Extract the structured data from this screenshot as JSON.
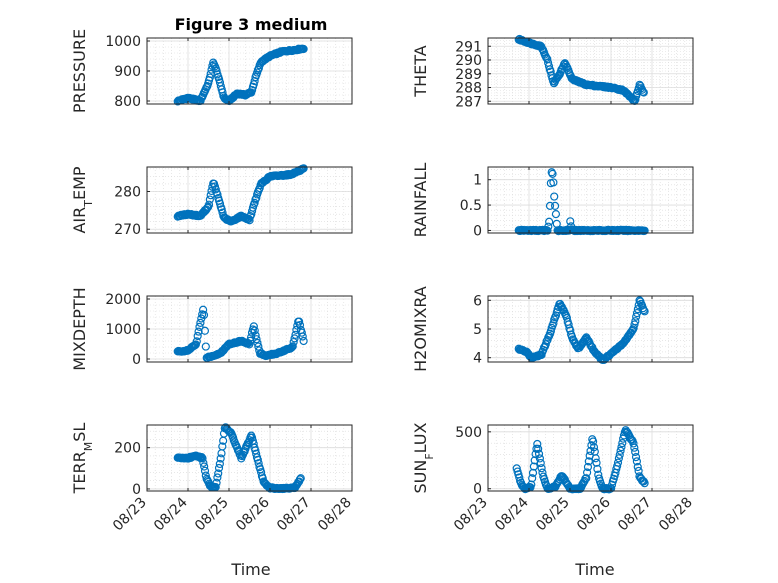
{
  "chart_data": {
    "type": "scatter",
    "title": "Figure 3 medium",
    "color": "#0072BD",
    "x_ticks": [
      "08/23",
      "08/24",
      "08/25",
      "08/26",
      "08/27",
      "08/28"
    ],
    "x_range": [
      "08/23",
      "08/28"
    ],
    "x_label": "Time",
    "grid": "on",
    "panels": [
      {
        "id": "pressure",
        "ylabel_text": "PRESSURE",
        "ylim": [
          790,
          1010
        ],
        "yticks": [
          {
            "value": 800,
            "label": "800"
          },
          {
            "value": 900,
            "label": "900"
          },
          {
            "value": 1000,
            "label": "1000"
          }
        ],
        "keys": [
          [
            0.75,
            800
          ],
          [
            1.0,
            810
          ],
          [
            1.3,
            800
          ],
          [
            1.5,
            860
          ],
          [
            1.62,
            930
          ],
          [
            1.72,
            890
          ],
          [
            1.88,
            810
          ],
          [
            2.0,
            800
          ],
          [
            2.2,
            825
          ],
          [
            2.4,
            820
          ],
          [
            2.55,
            830
          ],
          [
            2.65,
            880
          ],
          [
            2.78,
            930
          ],
          [
            3.0,
            950
          ],
          [
            3.3,
            965
          ],
          [
            3.6,
            970
          ],
          [
            3.82,
            975
          ]
        ],
        "n": 150
      },
      {
        "id": "theta",
        "ylabel_text": "THETA",
        "ylim": [
          286.8,
          291.6
        ],
        "yticks": [
          {
            "value": 287,
            "label": "287"
          },
          {
            "value": 288,
            "label": "288"
          },
          {
            "value": 289,
            "label": "289"
          },
          {
            "value": 290,
            "label": "290"
          },
          {
            "value": 291,
            "label": "291"
          }
        ],
        "keys": [
          [
            0.75,
            291.5
          ],
          [
            1.05,
            291.2
          ],
          [
            1.3,
            291.0
          ],
          [
            1.45,
            290.0
          ],
          [
            1.6,
            288.3
          ],
          [
            1.75,
            289.0
          ],
          [
            1.88,
            289.8
          ],
          [
            2.05,
            288.6
          ],
          [
            2.4,
            288.2
          ],
          [
            2.7,
            288.1
          ],
          [
            3.0,
            288.0
          ],
          [
            3.3,
            287.8
          ],
          [
            3.58,
            287.0
          ],
          [
            3.7,
            288.2
          ],
          [
            3.8,
            287.6
          ]
        ],
        "n": 150
      },
      {
        "id": "air-temp",
        "ylabel_text": "AIR",
        "ylabel_sub": "T",
        "ylabel_rest": "EMP",
        "ylim": [
          269,
          286.5
        ],
        "yticks": [
          {
            "value": 270,
            "label": "270"
          },
          {
            "value": 280,
            "label": "280"
          }
        ],
        "keys": [
          [
            0.75,
            273.5
          ],
          [
            1.0,
            274.0
          ],
          [
            1.3,
            273.5
          ],
          [
            1.5,
            276.0
          ],
          [
            1.62,
            282.5
          ],
          [
            1.72,
            279.0
          ],
          [
            1.88,
            273.0
          ],
          [
            2.05,
            272.0
          ],
          [
            2.3,
            273.5
          ],
          [
            2.5,
            272.5
          ],
          [
            2.62,
            277.0
          ],
          [
            2.78,
            282.0
          ],
          [
            3.0,
            284.0
          ],
          [
            3.5,
            284.5
          ],
          [
            3.82,
            286.0
          ]
        ],
        "n": 150
      },
      {
        "id": "rainfall",
        "ylabel_text": "RAINFALL",
        "ylim": [
          -0.05,
          1.25
        ],
        "yticks": [
          {
            "value": 0,
            "label": "0"
          },
          {
            "value": 0.5,
            "label": "0.5"
          },
          {
            "value": 1,
            "label": "1"
          }
        ],
        "keys": [
          [
            0.75,
            0
          ],
          [
            1.45,
            0
          ],
          [
            1.5,
            0.2
          ],
          [
            1.53,
            0.9
          ],
          [
            1.56,
            1.2
          ],
          [
            1.59,
            1.0
          ],
          [
            1.62,
            0.6
          ],
          [
            1.65,
            0.4
          ],
          [
            1.69,
            0
          ],
          [
            2.0,
            0
          ],
          [
            2.0,
            0.2
          ],
          [
            2.05,
            0
          ],
          [
            3.82,
            0
          ]
        ],
        "n": 150
      },
      {
        "id": "mixdepth",
        "ylabel_text": "MIXDEPTH",
        "ylim": [
          -100,
          2100
        ],
        "yticks": [
          {
            "value": 0,
            "label": "0"
          },
          {
            "value": 1000,
            "label": "1000"
          },
          {
            "value": 2000,
            "label": "2000"
          }
        ],
        "keys": [
          [
            0.75,
            250
          ],
          [
            1.0,
            280
          ],
          [
            1.2,
            500
          ],
          [
            1.3,
            1200
          ],
          [
            1.38,
            1700
          ],
          [
            1.45,
            50
          ],
          [
            1.6,
            100
          ],
          [
            1.8,
            200
          ],
          [
            2.0,
            500
          ],
          [
            2.3,
            600
          ],
          [
            2.5,
            500
          ],
          [
            2.6,
            1100
          ],
          [
            2.75,
            200
          ],
          [
            2.9,
            100
          ],
          [
            3.2,
            200
          ],
          [
            3.55,
            400
          ],
          [
            3.7,
            1300
          ],
          [
            3.82,
            600
          ]
        ],
        "n": 140
      },
      {
        "id": "h2omixra",
        "ylabel_text": "H2OMIXRA",
        "ylim": [
          3.85,
          6.15
        ],
        "yticks": [
          {
            "value": 4,
            "label": "4"
          },
          {
            "value": 5,
            "label": "5"
          },
          {
            "value": 6,
            "label": "6"
          }
        ],
        "keys": [
          [
            0.75,
            4.3
          ],
          [
            0.95,
            4.2
          ],
          [
            1.05,
            4.0
          ],
          [
            1.3,
            4.1
          ],
          [
            1.5,
            4.8
          ],
          [
            1.75,
            5.9
          ],
          [
            1.9,
            5.5
          ],
          [
            2.05,
            4.7
          ],
          [
            2.2,
            4.3
          ],
          [
            2.4,
            4.7
          ],
          [
            2.6,
            4.2
          ],
          [
            2.8,
            3.9
          ],
          [
            3.05,
            4.2
          ],
          [
            3.3,
            4.5
          ],
          [
            3.55,
            5.0
          ],
          [
            3.7,
            6.0
          ],
          [
            3.82,
            5.6
          ]
        ],
        "n": 150
      },
      {
        "id": "terr-msl",
        "ylabel_text": "TERR",
        "ylabel_sub": "M",
        "ylabel_rest": "SL",
        "ylim": [
          -10,
          310
        ],
        "yticks": [
          {
            "value": 0,
            "label": "0"
          },
          {
            "value": 200,
            "label": "200"
          }
        ],
        "keys": [
          [
            0.75,
            150
          ],
          [
            1.0,
            150
          ],
          [
            1.2,
            160
          ],
          [
            1.35,
            150
          ],
          [
            1.45,
            50
          ],
          [
            1.55,
            10
          ],
          [
            1.68,
            10
          ],
          [
            1.8,
            150
          ],
          [
            1.9,
            300
          ],
          [
            2.05,
            270
          ],
          [
            2.3,
            150
          ],
          [
            2.55,
            260
          ],
          [
            2.7,
            140
          ],
          [
            2.85,
            30
          ],
          [
            3.0,
            5
          ],
          [
            3.2,
            2
          ],
          [
            3.6,
            5
          ],
          [
            3.75,
            50
          ]
        ],
        "n": 150
      },
      {
        "id": "sun-flux",
        "ylabel_text": "SUN",
        "ylabel_sub": "F",
        "ylabel_rest": "LUX",
        "ylim": [
          -20,
          560
        ],
        "yticks": [
          {
            "value": 0,
            "label": "0"
          },
          {
            "value": 500,
            "label": "500"
          }
        ],
        "keys": [
          [
            0.7,
            180
          ],
          [
            0.8,
            50
          ],
          [
            0.9,
            0
          ],
          [
            1.05,
            20
          ],
          [
            1.2,
            400
          ],
          [
            1.35,
            100
          ],
          [
            1.45,
            0
          ],
          [
            1.65,
            20
          ],
          [
            1.8,
            120
          ],
          [
            2.0,
            0
          ],
          [
            2.25,
            0
          ],
          [
            2.4,
            100
          ],
          [
            2.55,
            450
          ],
          [
            2.7,
            100
          ],
          [
            2.8,
            0
          ],
          [
            3.0,
            0
          ],
          [
            3.15,
            200
          ],
          [
            3.35,
            520
          ],
          [
            3.55,
            400
          ],
          [
            3.7,
            100
          ],
          [
            3.82,
            50
          ]
        ],
        "n": 150
      }
    ]
  }
}
